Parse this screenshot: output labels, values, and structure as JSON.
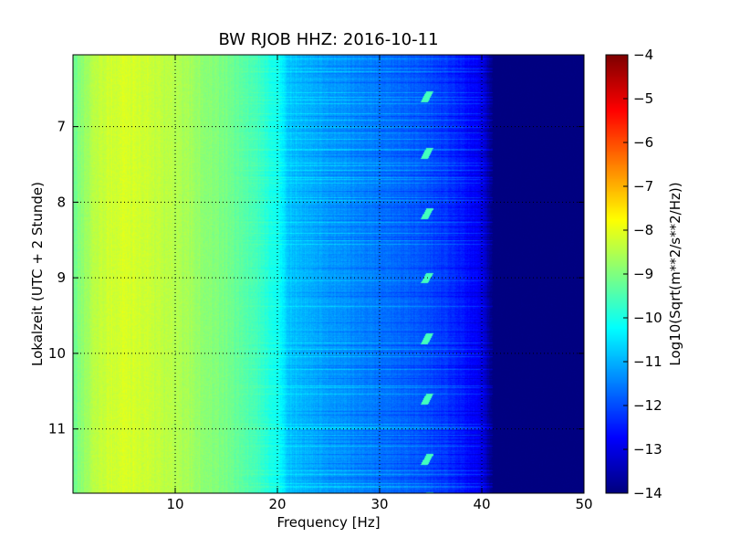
{
  "chart_data": {
    "type": "heatmap",
    "title": "BW RJOB HHZ: 2016-10-11",
    "xlabel": "Frequency [Hz]",
    "ylabel": "Lokalzeit (UTC + 2 Stunde)",
    "xlim": [
      0,
      50
    ],
    "ylim": [
      11.85,
      6.05
    ],
    "y_inverted": true,
    "x_ticks": [
      10,
      20,
      30,
      40,
      50
    ],
    "x_tick_labels": [
      "10",
      "20",
      "30",
      "40",
      "50"
    ],
    "y_ticks": [
      7,
      8,
      9,
      10,
      11
    ],
    "y_tick_labels": [
      "7",
      "8",
      "9",
      "10",
      "11"
    ],
    "grid": true,
    "colormap": "jet",
    "colorbar": {
      "label": "Log10(Sqrt(m**2/s**2/Hz))",
      "range": [
        -14,
        -4
      ],
      "ticks": [
        -4,
        -5,
        -6,
        -7,
        -8,
        -9,
        -10,
        -11,
        -12,
        -13,
        -14
      ],
      "tick_labels": [
        "−4",
        "−5",
        "−6",
        "−7",
        "−8",
        "−9",
        "−10",
        "−11",
        "−12",
        "−13",
        "−14"
      ]
    },
    "spectral_profile": {
      "frequency_hz": [
        0,
        2,
        5,
        10,
        15,
        18,
        20,
        21,
        25,
        30,
        35,
        38,
        40,
        41,
        50
      ],
      "log10_amplitude": [
        -9.2,
        -8.4,
        -8.1,
        -8.5,
        -9.1,
        -9.6,
        -10.1,
        -10.8,
        -11.2,
        -11.6,
        -12.0,
        -12.5,
        -13.0,
        -14.0,
        -14.0
      ]
    },
    "disturbance_marks": {
      "frequency_hz": 34.8,
      "times": [
        6.55,
        7.3,
        8.1,
        8.95,
        9.75,
        10.55,
        11.35,
        11.85
      ]
    }
  }
}
